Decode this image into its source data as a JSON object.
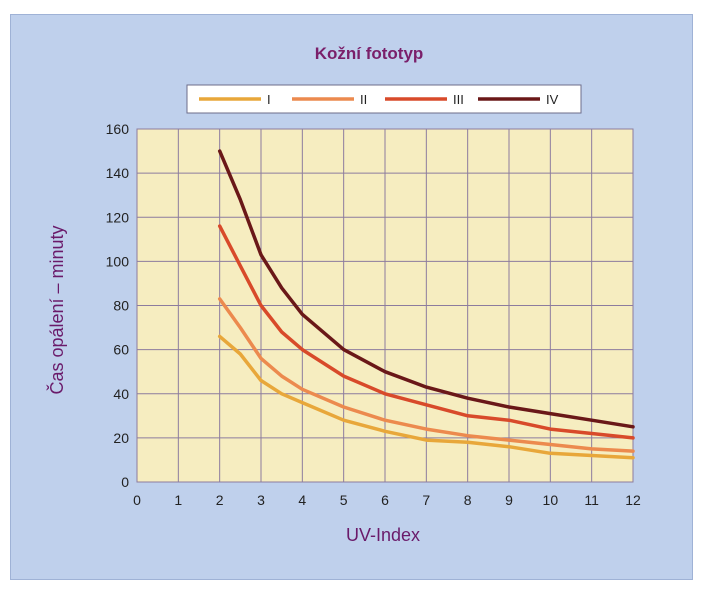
{
  "chart_data": {
    "type": "line",
    "title": "Kožní fototyp",
    "xlabel": "UV-Index",
    "ylabel": "Čas opálení – minuty",
    "xlim": [
      0,
      12
    ],
    "ylim": [
      0,
      160
    ],
    "x_ticks": [
      0,
      1,
      2,
      3,
      4,
      5,
      6,
      7,
      8,
      9,
      10,
      11,
      12
    ],
    "y_ticks": [
      0,
      20,
      40,
      60,
      80,
      100,
      120,
      140,
      160
    ],
    "grid": true,
    "legend_position": "top",
    "colors": {
      "plot_background": "#f6edc0",
      "frame_background": "#bfd0ec",
      "grid": "#8c7c9e"
    },
    "series": [
      {
        "name": "I",
        "color": "#e8a73a",
        "x": [
          2,
          2.5,
          3,
          3.5,
          4,
          5,
          6,
          7,
          8,
          9,
          10,
          11,
          12
        ],
        "y": [
          66,
          58,
          46,
          40,
          36,
          28,
          23,
          19,
          18,
          16,
          13,
          12,
          11
        ]
      },
      {
        "name": "II",
        "color": "#ec8a4e",
        "x": [
          2,
          2.5,
          3,
          3.5,
          4,
          5,
          6,
          7,
          8,
          9,
          10,
          11,
          12
        ],
        "y": [
          83,
          70,
          56,
          48,
          42,
          34,
          28,
          24,
          21,
          19,
          17,
          15,
          14
        ]
      },
      {
        "name": "III",
        "color": "#d84a2a",
        "x": [
          2,
          2.5,
          3,
          3.5,
          4,
          5,
          6,
          7,
          8,
          9,
          10,
          11,
          12
        ],
        "y": [
          116,
          98,
          80,
          68,
          60,
          48,
          40,
          35,
          30,
          28,
          24,
          22,
          20
        ]
      },
      {
        "name": "IV",
        "color": "#6a1818",
        "x": [
          2,
          2.5,
          3,
          3.5,
          4,
          5,
          6,
          7,
          8,
          9,
          10,
          11,
          12
        ],
        "y": [
          150,
          128,
          103,
          88,
          76,
          60,
          50,
          43,
          38,
          34,
          31,
          28,
          25
        ]
      }
    ]
  }
}
